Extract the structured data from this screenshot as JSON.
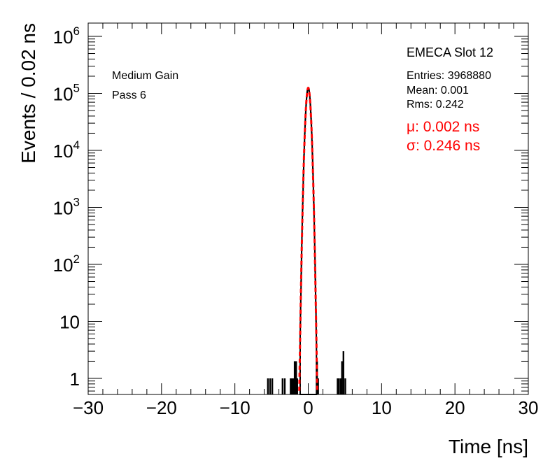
{
  "chart_data": {
    "type": "bar",
    "title": "EMECA Slot 12",
    "xlabel": "Time [ns]",
    "ylabel": "Events / 0.02 ns",
    "xlim": [
      -30,
      30
    ],
    "ylim": [
      0.55,
      1500000
    ],
    "yscale": "log",
    "bin_width": 0.02,
    "xticks": [
      -30,
      -20,
      -10,
      0,
      10,
      20,
      30
    ],
    "xtick_labels": [
      "−30",
      "−20",
      "−10",
      "0",
      "10",
      "20",
      "30"
    ],
    "yticks": [
      1,
      10,
      100,
      1000,
      10000,
      100000,
      1000000
    ],
    "ytick_labels": [
      {
        "base": "1",
        "exp": ""
      },
      {
        "base": "10",
        "exp": ""
      },
      {
        "base": "10",
        "exp": "2"
      },
      {
        "base": "10",
        "exp": "3"
      },
      {
        "base": "10",
        "exp": "4"
      },
      {
        "base": "10",
        "exp": "5"
      },
      {
        "base": "10",
        "exp": "6"
      }
    ],
    "annotations": {
      "gain": "Medium Gain",
      "pass": "Pass 6"
    },
    "stats": {
      "entries": "Entries: 3968880",
      "mean": "Mean: 0.001",
      "rms": "Rms: 0.242"
    },
    "fit": {
      "mu": "μ: 0.002 ns",
      "sigma": "σ: 0.246 ns",
      "mu_value": 0.002,
      "sigma_value": 0.246,
      "peak": 125000,
      "color": "#ff0000",
      "style": "dashed"
    },
    "outliers": [
      {
        "x": -5.5,
        "y": 1
      },
      {
        "x": -5.2,
        "y": 1
      },
      {
        "x": -4.9,
        "y": 1
      },
      {
        "x": -3.5,
        "y": 1
      },
      {
        "x": -3.2,
        "y": 1
      },
      {
        "x": -2.4,
        "y": 1
      },
      {
        "x": -2.2,
        "y": 1
      },
      {
        "x": -2.05,
        "y": 1
      },
      {
        "x": -1.85,
        "y": 2
      },
      {
        "x": -1.65,
        "y": 2
      },
      {
        "x": -1.5,
        "y": 1
      },
      {
        "x": 1.2,
        "y": 2
      },
      {
        "x": 1.35,
        "y": 1
      },
      {
        "x": 4.0,
        "y": 1
      },
      {
        "x": 4.2,
        "y": 1
      },
      {
        "x": 4.45,
        "y": 1
      },
      {
        "x": 4.6,
        "y": 2
      },
      {
        "x": 4.8,
        "y": 3
      },
      {
        "x": 5.05,
        "y": 1
      }
    ],
    "colors": {
      "histogram": "#000000",
      "fit": "#ff0000"
    }
  }
}
